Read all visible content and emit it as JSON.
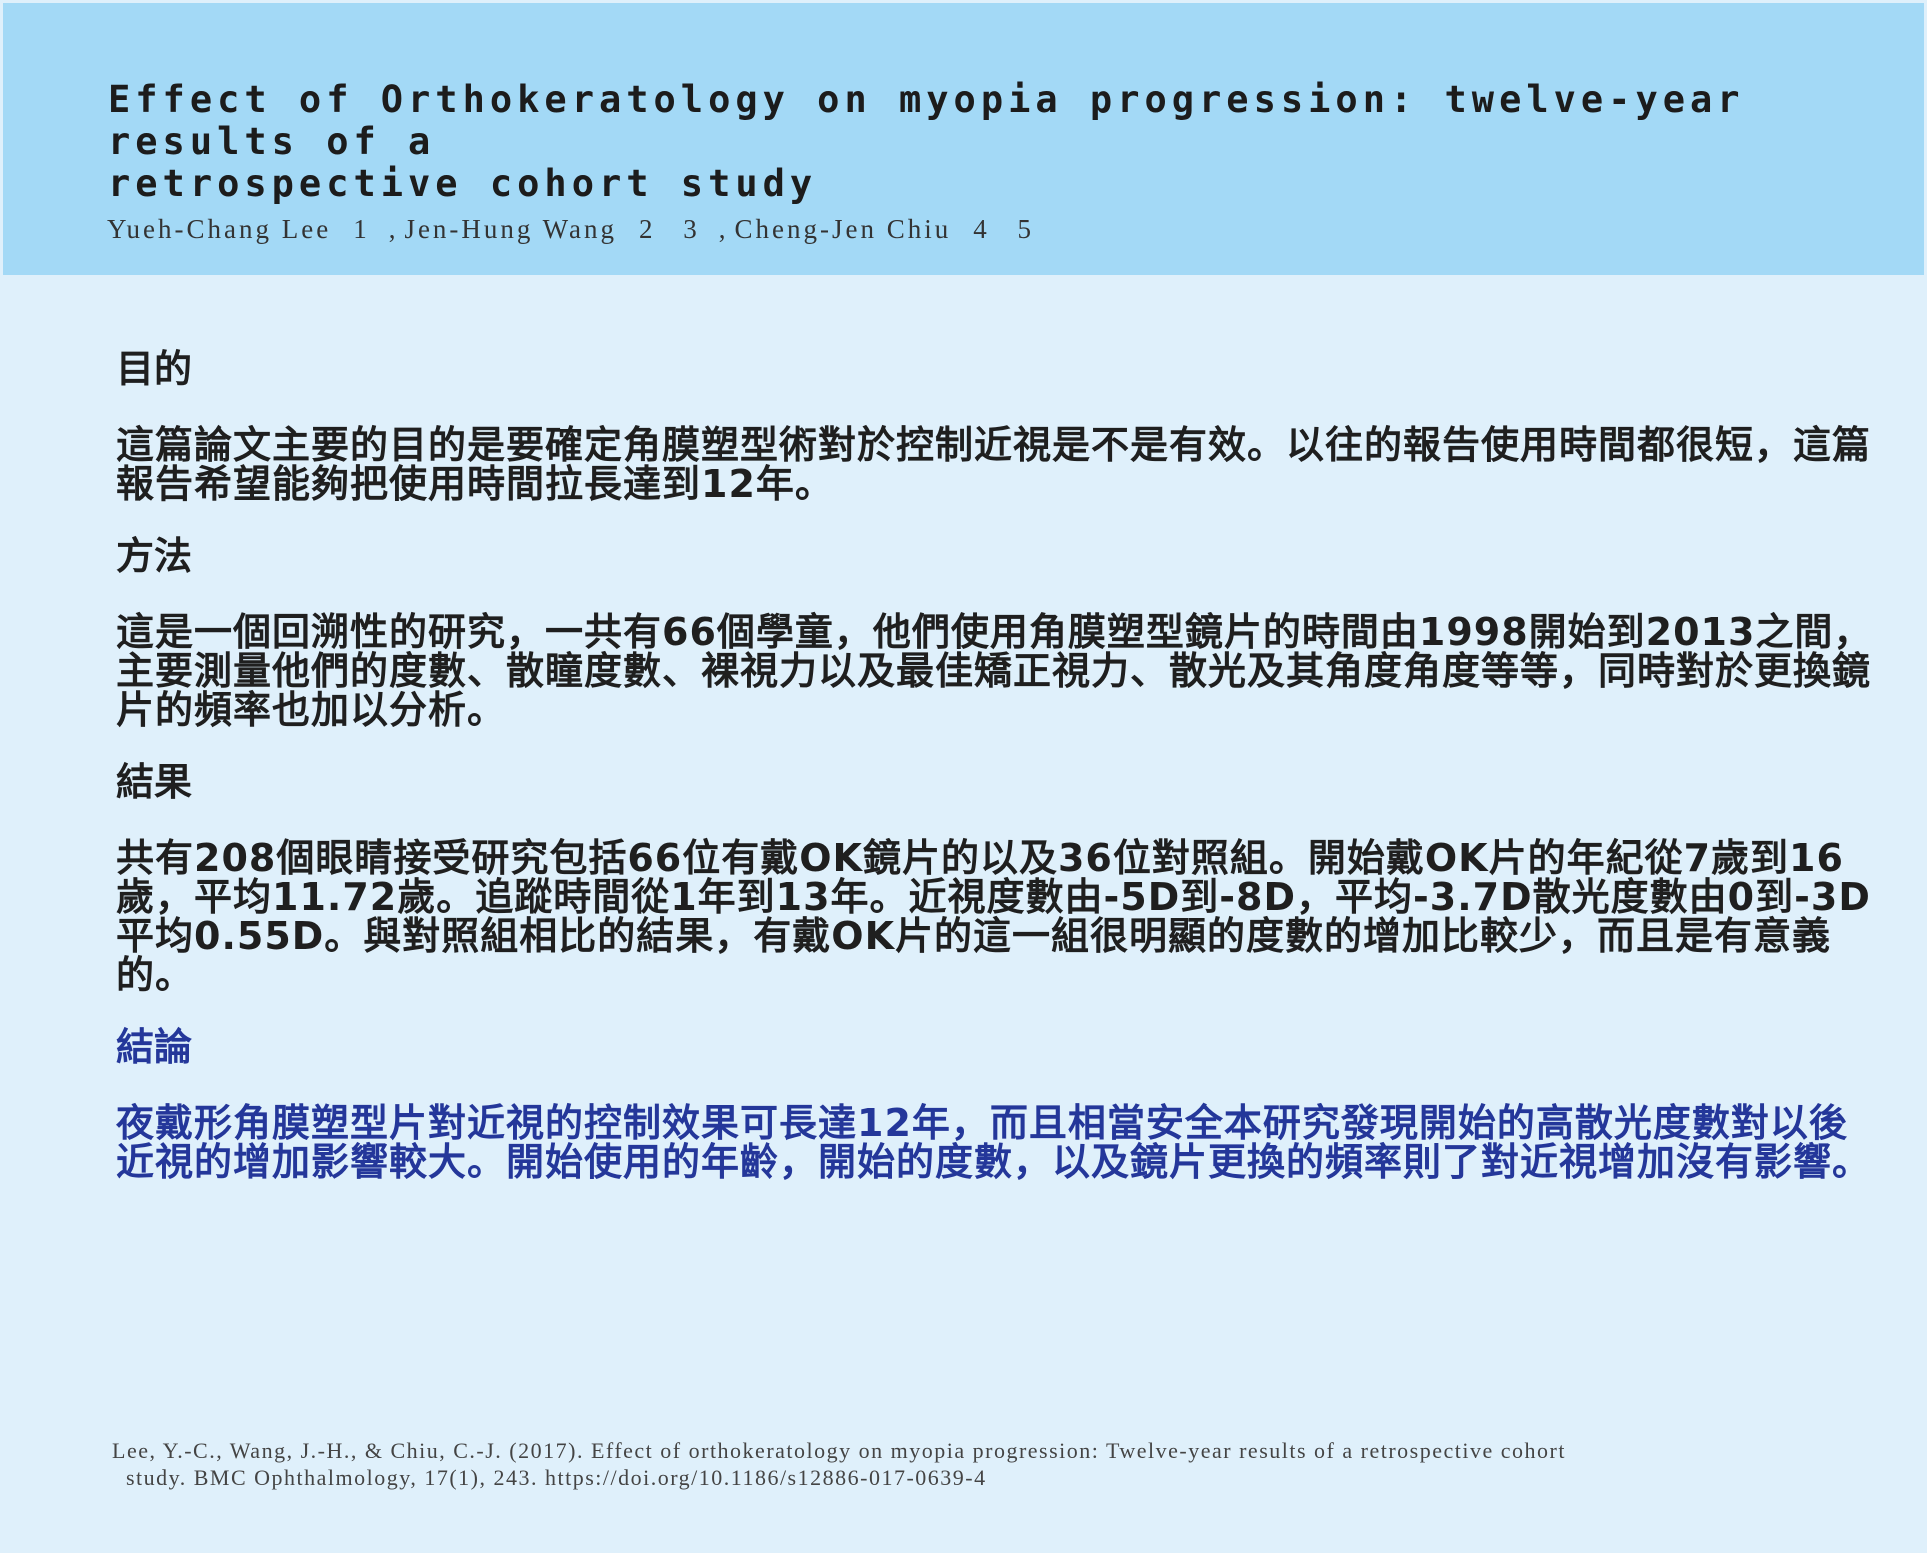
{
  "header": {
    "title_line1": "Effect of Orthokeratology on myopia progression: twelve-year results of a",
    "title_line2": "retrospective cohort study",
    "authors": [
      {
        "name": "Yueh-Chang Lee",
        "affiliation": "1"
      },
      {
        "name": "Jen-Hung Wang",
        "affiliation": "2 3"
      },
      {
        "name": "Cheng-Jen Chiu",
        "affiliation": "4 5"
      }
    ]
  },
  "sections": {
    "purpose": {
      "heading": "目的",
      "body": "這篇論文主要的目的是要確定角膜塑型術對於控制近視是不是有效。以往的報告使用時間都很短，這篇報告希望能夠把使用時間拉長達到12年。"
    },
    "methods": {
      "heading": "方法",
      "body": "這是一個回溯性的研究，一共有66個學童，他們使用角膜塑型鏡片的時間由1998開始到2013之間，主要測量他們的度數、散瞳度數、裸視力以及最佳矯正視力、散光及其角度角度等等，同時對於更換鏡片的頻率也加以分析。"
    },
    "results": {
      "heading": "結果",
      "body": "共有208個眼睛接受研究包括66位有戴OK鏡片的以及36位對照組。開始戴OK片的年紀從7歲到16歲，平均11.72歲。追蹤時間從1年到13年。近視度數由-5D到-8D，平均-3.7D散光度數由0到-3D平均0.55D。與對照組相比的結果，有戴OK片的這一組很明顯的度數的增加比較少，而且是有意義的。"
    },
    "conclusion": {
      "heading": "結論",
      "body": "夜戴形角膜塑型片對近視的控制效果可長達12年，而且相當安全本研究發現開始的高散光度數對以後近視的增加影響較大。開始使用的年齡，開始的度數，以及鏡片更換的頻率則了對近視增加沒有影響。"
    }
  },
  "reference": {
    "line1": "Lee, Y.-C., Wang, J.-H., & Chiu, C.-J. (2017). Effect of orthokeratology on myopia progression: Twelve-year results of a retrospective cohort",
    "line2": "study. BMC Ophthalmology, 17(1), 243. https://doi.org/10.1186/s12886-017-0639-4"
  },
  "colors": {
    "page_background": "#dff0fb",
    "header_background": "#a3d9f6",
    "body_text": "#1f1f1f",
    "conclusion_text": "#24379a"
  }
}
